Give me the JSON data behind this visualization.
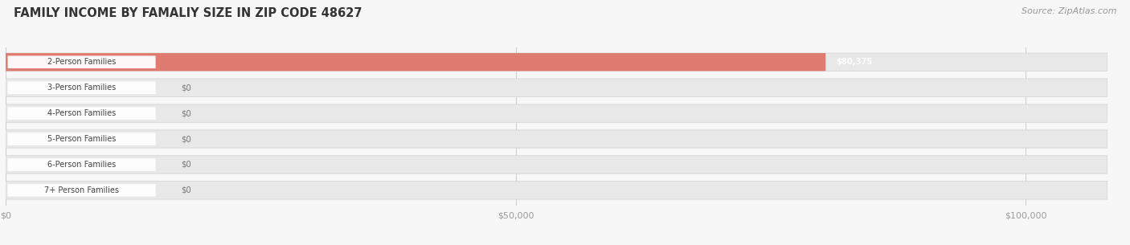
{
  "title": "FAMILY INCOME BY FAMALIY SIZE IN ZIP CODE 48627",
  "source": "Source: ZipAtlas.com",
  "categories": [
    "2-Person Families",
    "3-Person Families",
    "4-Person Families",
    "5-Person Families",
    "6-Person Families",
    "7+ Person Families"
  ],
  "values": [
    80375,
    0,
    0,
    0,
    0,
    0
  ],
  "bar_colors": [
    "#e07b72",
    "#9ab4d4",
    "#c4a8d0",
    "#7ec5c0",
    "#a8aad4",
    "#f0a0b8"
  ],
  "value_labels": [
    "$80,375",
    "$0",
    "$0",
    "$0",
    "$0",
    "$0"
  ],
  "xlim_data": 100000,
  "xlim_display": 108000,
  "xticks": [
    0,
    50000,
    100000
  ],
  "xticklabels": [
    "$0",
    "$50,000",
    "$100,000"
  ],
  "background_color": "#f7f7f7",
  "bar_bg_color": "#e8e8e8",
  "title_fontsize": 10.5,
  "source_fontsize": 8
}
